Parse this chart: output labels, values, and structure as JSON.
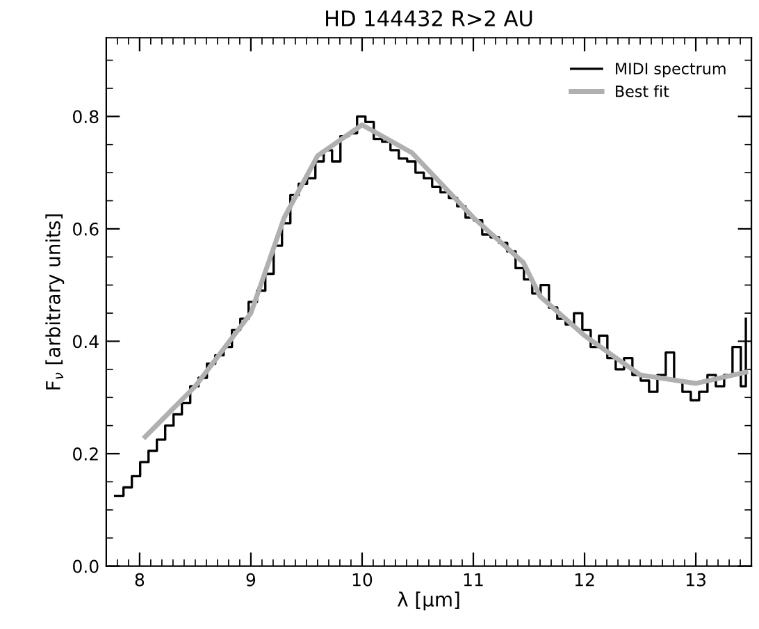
{
  "chart_data": {
    "type": "line",
    "title": "HD 144432 R>2 AU",
    "xlabel": "λ [μm]",
    "ylabel": "F$_{ν}$ [arbitrary units]",
    "xlim": [
      7.7,
      13.5
    ],
    "xticks": [
      8,
      9,
      10,
      11,
      12,
      13
    ],
    "ylim": [
      0,
      0.94
    ],
    "yticks": [
      {
        "value": 0,
        "label": "0.0"
      },
      {
        "value": 0.2,
        "label": "0.2"
      },
      {
        "value": 0.4,
        "label": "0.4"
      },
      {
        "value": 0.6,
        "label": "0.6"
      },
      {
        "value": 0.8,
        "label": "0.8"
      }
    ],
    "legend": "top right",
    "grid": false,
    "series": [
      {
        "name": "MIDI spectrum",
        "type": "step",
        "color": "#000000",
        "x": [
          7.78,
          7.855,
          7.93,
          8.005,
          8.08,
          8.155,
          8.23,
          8.305,
          8.38,
          8.455,
          8.53,
          8.605,
          8.68,
          8.755,
          8.83,
          8.905,
          8.98,
          9.055,
          9.13,
          9.205,
          9.28,
          9.355,
          9.43,
          9.505,
          9.58,
          9.655,
          9.73,
          9.805,
          9.88,
          9.955,
          10.03,
          10.105,
          10.18,
          10.255,
          10.33,
          10.405,
          10.48,
          10.555,
          10.63,
          10.705,
          10.78,
          10.855,
          10.93,
          11.005,
          11.08,
          11.155,
          11.23,
          11.305,
          11.38,
          11.455,
          11.53,
          11.605,
          11.68,
          11.755,
          11.83,
          11.905,
          11.98,
          12.055,
          12.13,
          12.205,
          12.28,
          12.355,
          12.43,
          12.505,
          12.58,
          12.655,
          12.73,
          12.805,
          12.88,
          12.955,
          13.03,
          13.105,
          13.18,
          13.255,
          13.33,
          13.405,
          13.45
        ],
        "values": [
          0.125,
          0.14,
          0.16,
          0.185,
          0.205,
          0.225,
          0.25,
          0.27,
          0.29,
          0.32,
          0.335,
          0.36,
          0.375,
          0.39,
          0.42,
          0.44,
          0.47,
          0.49,
          0.52,
          0.57,
          0.61,
          0.66,
          0.68,
          0.69,
          0.72,
          0.74,
          0.72,
          0.765,
          0.77,
          0.8,
          0.79,
          0.76,
          0.755,
          0.74,
          0.725,
          0.72,
          0.7,
          0.69,
          0.675,
          0.665,
          0.655,
          0.64,
          0.62,
          0.615,
          0.59,
          0.585,
          0.575,
          0.56,
          0.53,
          0.51,
          0.485,
          0.5,
          0.46,
          0.44,
          0.43,
          0.45,
          0.42,
          0.39,
          0.41,
          0.37,
          0.35,
          0.37,
          0.34,
          0.33,
          0.31,
          0.34,
          0.38,
          0.33,
          0.31,
          0.295,
          0.31,
          0.34,
          0.32,
          0.34,
          0.39,
          0.32,
          0.44
        ]
      },
      {
        "name": "Best fit",
        "color": "#b0b0b0",
        "x": [
          8.05,
          8.5,
          9.0,
          9.3,
          9.6,
          10.0,
          10.45,
          11.0,
          11.45,
          11.6,
          12.0,
          12.5,
          13.0,
          13.45
        ],
        "values": [
          0.23,
          0.32,
          0.45,
          0.62,
          0.73,
          0.785,
          0.735,
          0.62,
          0.54,
          0.48,
          0.41,
          0.34,
          0.325,
          0.345
        ]
      }
    ]
  }
}
